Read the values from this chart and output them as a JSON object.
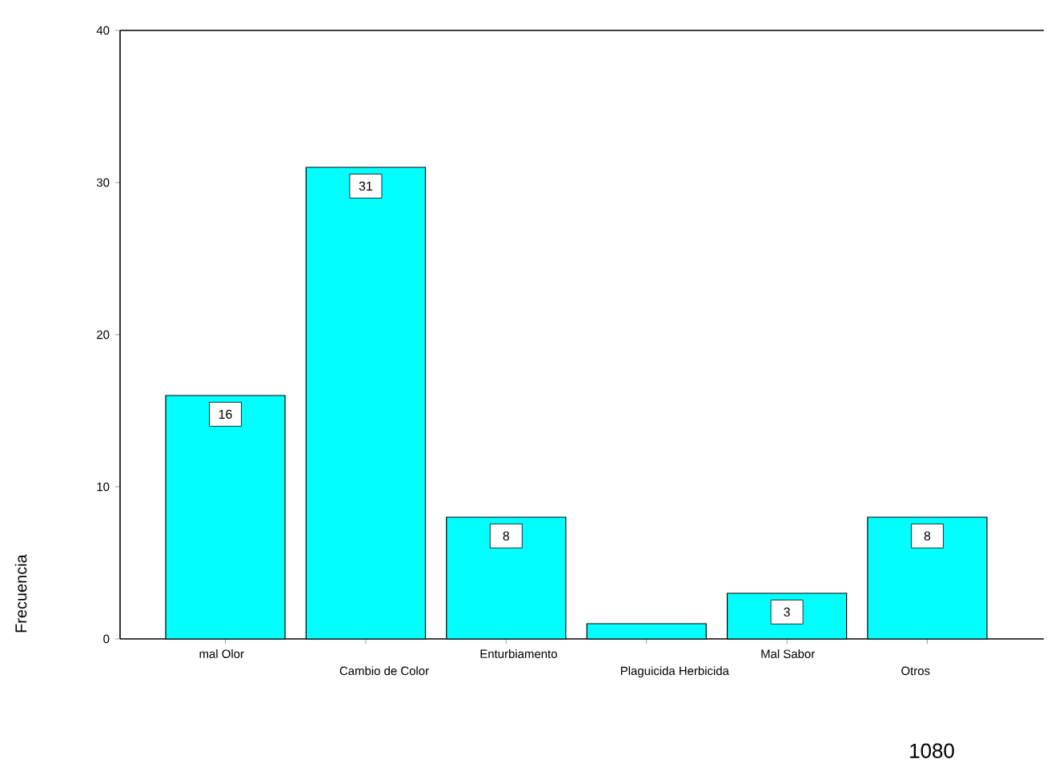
{
  "chart_data": {
    "type": "bar",
    "ylabel": "Frecuencia",
    "categories": [
      "mal Olor",
      "Cambio de Color",
      "Enturbiamento",
      "Plaguicida Herbicida",
      "Mal Sabor",
      "Otros"
    ],
    "values": [
      16,
      31,
      8,
      1,
      3,
      8
    ],
    "value_labels": [
      "16",
      "31",
      "8",
      null,
      "3",
      "8"
    ],
    "color": "#00ffff",
    "ylim": [
      0,
      40
    ],
    "yticks": [
      0,
      10,
      20,
      30,
      40
    ],
    "annotations": [
      "1080"
    ]
  }
}
